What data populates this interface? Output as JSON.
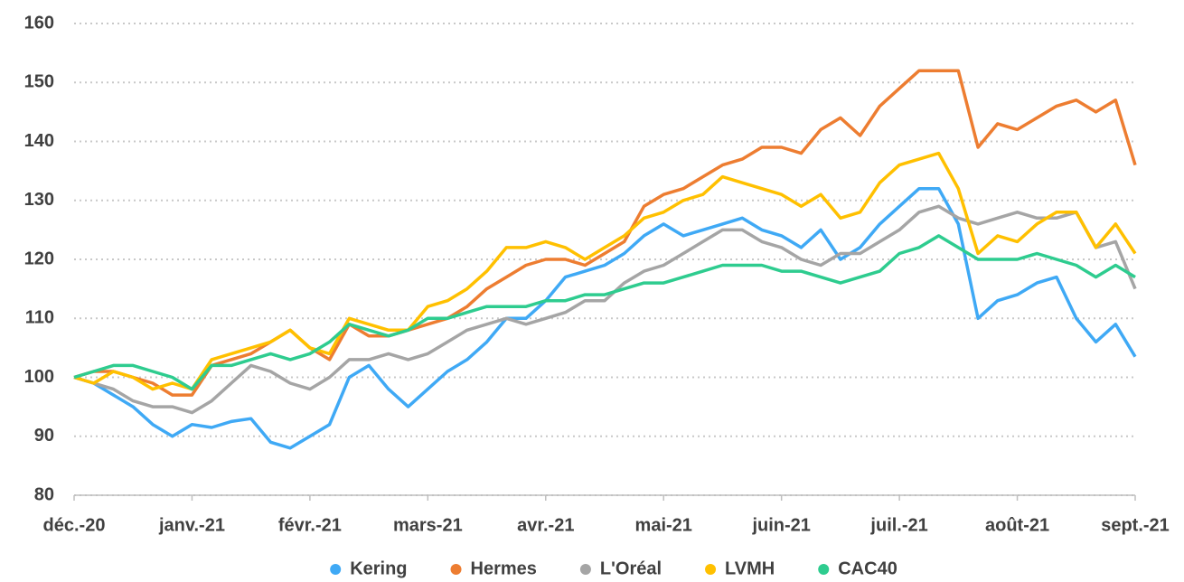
{
  "chart_data": {
    "type": "line",
    "categories": [
      "déc.-20",
      null,
      null,
      null,
      null,
      null,
      "janv.-21",
      null,
      null,
      null,
      null,
      null,
      "févr.-21",
      null,
      null,
      null,
      null,
      null,
      "mars-21",
      null,
      null,
      null,
      null,
      null,
      "avr.-21",
      null,
      null,
      null,
      null,
      null,
      "mai-21",
      null,
      null,
      null,
      null,
      null,
      "juin-21",
      null,
      null,
      null,
      null,
      null,
      "juil.-21",
      null,
      null,
      null,
      null,
      null,
      "août-21",
      null,
      null,
      null,
      null,
      null,
      "sept.-21"
    ],
    "series": [
      {
        "name": "Kering",
        "color": "#3fa9f5",
        "values": [
          100,
          99,
          97,
          95,
          92,
          90,
          92,
          91.5,
          92.5,
          93,
          89,
          88,
          90,
          92,
          100,
          102,
          98,
          95,
          98,
          101,
          103,
          106,
          110,
          110,
          113,
          117,
          118,
          119,
          121,
          124,
          126,
          124,
          125,
          126,
          127,
          125,
          124,
          122,
          125,
          120,
          122,
          126,
          129,
          132,
          132,
          126,
          110,
          113,
          114,
          116,
          117,
          110,
          106,
          109,
          103.5
        ]
      },
      {
        "name": "Hermes",
        "color": "#ed7d31",
        "values": [
          100,
          101,
          101,
          100,
          99,
          97,
          97,
          102,
          103,
          104,
          106,
          108,
          105,
          103,
          109,
          107,
          107,
          108,
          109,
          110,
          112,
          115,
          117,
          119,
          120,
          120,
          119,
          121,
          123,
          129,
          131,
          132,
          134,
          136,
          137,
          139,
          139,
          138,
          142,
          144,
          141,
          146,
          149,
          152,
          152,
          152,
          139,
          143,
          142,
          144,
          146,
          147,
          145,
          147,
          136
        ]
      },
      {
        "name": "L'Oréal",
        "color": "#a5a5a5",
        "values": [
          100,
          99,
          98,
          96,
          95,
          95,
          94,
          96,
          99,
          102,
          101,
          99,
          98,
          100,
          103,
          103,
          104,
          103,
          104,
          106,
          108,
          109,
          110,
          109,
          110,
          111,
          113,
          113,
          116,
          118,
          119,
          121,
          123,
          125,
          125,
          123,
          122,
          120,
          119,
          121,
          121,
          123,
          125,
          128,
          129,
          127,
          126,
          127,
          128,
          127,
          127,
          128,
          122,
          123,
          115
        ]
      },
      {
        "name": "LVMH",
        "color": "#ffc000",
        "values": [
          100,
          99,
          101,
          100,
          98,
          99,
          98,
          103,
          104,
          105,
          106,
          108,
          105,
          104,
          110,
          109,
          108,
          108,
          112,
          113,
          115,
          118,
          122,
          122,
          123,
          122,
          120,
          122,
          124,
          127,
          128,
          130,
          131,
          134,
          133,
          132,
          131,
          129,
          131,
          127,
          128,
          133,
          136,
          137,
          138,
          132,
          121,
          124,
          123,
          126,
          128,
          128,
          122,
          126,
          121
        ]
      },
      {
        "name": "CAC40",
        "color": "#2ecc8f",
        "values": [
          100,
          101,
          102,
          102,
          101,
          100,
          98,
          102,
          102,
          103,
          104,
          103,
          104,
          106,
          109,
          108,
          107,
          108,
          110,
          110,
          111,
          112,
          112,
          112,
          113,
          113,
          114,
          114,
          115,
          116,
          116,
          117,
          118,
          119,
          119,
          119,
          118,
          118,
          117,
          116,
          117,
          118,
          121,
          122,
          124,
          122,
          120,
          120,
          120,
          121,
          120,
          119,
          117,
          119,
          117
        ]
      }
    ],
    "ylim": [
      80,
      160
    ],
    "yticks": [
      80,
      90,
      100,
      110,
      120,
      130,
      140,
      150,
      160
    ],
    "grid": true,
    "legend": "bottom"
  }
}
